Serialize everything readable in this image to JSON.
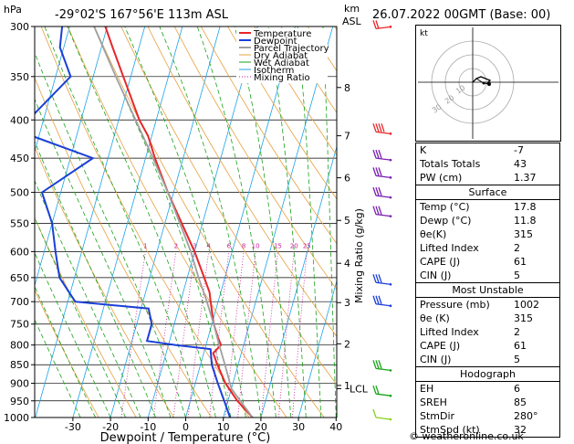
{
  "header": {
    "hpa_label": "hPa",
    "location": "-29°02'S  167°56'E  113m  ASL",
    "km_label": "km",
    "asl_label": "ASL",
    "date": "26.07.2022  00GMT  (Base: 00)"
  },
  "axes": {
    "xlabel": "Dewpoint / Temperature (°C)",
    "mixing_axis_label": "Mixing Ratio (g/kg)"
  },
  "chart_data": {
    "type": "skew-t",
    "pressure_levels": [
      300,
      350,
      400,
      450,
      500,
      550,
      600,
      650,
      700,
      750,
      800,
      850,
      900,
      950,
      1000
    ],
    "x_ticks": [
      -30,
      -20,
      -10,
      0,
      10,
      20,
      30,
      40
    ],
    "xlim": [
      -40,
      40
    ],
    "ylim": [
      1000,
      300
    ],
    "km_ticks": [
      {
        "label": "8",
        "p": 362
      },
      {
        "label": "7",
        "p": 420
      },
      {
        "label": "6",
        "p": 478
      },
      {
        "label": "5",
        "p": 545
      },
      {
        "label": "4",
        "p": 622
      },
      {
        "label": "3",
        "p": 702
      },
      {
        "label": "2",
        "p": 797
      },
      {
        "label": "1",
        "p": 906
      },
      {
        "label": "LCL",
        "p": 915
      }
    ],
    "mixing_ratio_labels": [
      "1",
      "2",
      "3",
      "4",
      "6",
      "8",
      "10",
      "15",
      "20",
      "25"
    ],
    "legend": [
      "Temperature",
      "Dewpoint",
      "Parcel Trajectory",
      "Dry Adiabat",
      "Wet Adiabat",
      "Isotherm",
      "Mixing Ratio"
    ],
    "series": [
      {
        "name": "Temperature",
        "color": "#e8262a",
        "points": [
          [
            1000,
            17.8
          ],
          [
            950,
            12.5
          ],
          [
            900,
            8.0
          ],
          [
            850,
            4.5
          ],
          [
            820,
            2.5
          ],
          [
            800,
            4.0
          ],
          [
            780,
            2.5
          ],
          [
            750,
            0.5
          ],
          [
            700,
            -2.0
          ],
          [
            680,
            -3.0
          ],
          [
            650,
            -5.5
          ],
          [
            600,
            -10.0
          ],
          [
            550,
            -15.5
          ],
          [
            500,
            -21.5
          ],
          [
            450,
            -27.5
          ],
          [
            420,
            -31.0
          ],
          [
            400,
            -34.5
          ],
          [
            350,
            -42.0
          ],
          [
            320,
            -47.0
          ],
          [
            300,
            -50.5
          ]
        ]
      },
      {
        "name": "Dewpoint",
        "color": "#1b3fd8",
        "points": [
          [
            1000,
            11.8
          ],
          [
            950,
            9.0
          ],
          [
            900,
            6.0
          ],
          [
            850,
            3.0
          ],
          [
            810,
            1.5
          ],
          [
            800,
            -8.0
          ],
          [
            790,
            -16.0
          ],
          [
            750,
            -16.0
          ],
          [
            715,
            -18.0
          ],
          [
            700,
            -38.0
          ],
          [
            650,
            -44.0
          ],
          [
            600,
            -47.0
          ],
          [
            550,
            -50.0
          ],
          [
            500,
            -55.0
          ],
          [
            450,
            -44.0
          ],
          [
            420,
            -62.0
          ],
          [
            400,
            -64.0
          ],
          [
            350,
            -56.0
          ],
          [
            320,
            -61.0
          ],
          [
            300,
            -62.0
          ]
        ]
      },
      {
        "name": "Parcel Trajectory",
        "color": "#a0a0a0",
        "points": [
          [
            1000,
            17.8
          ],
          [
            915,
            10.0
          ],
          [
            850,
            6.5
          ],
          [
            800,
            3.5
          ],
          [
            750,
            0.5
          ],
          [
            700,
            -3.0
          ],
          [
            650,
            -7.0
          ],
          [
            600,
            -11.0
          ],
          [
            550,
            -16.0
          ],
          [
            500,
            -21.5
          ],
          [
            450,
            -28.0
          ],
          [
            400,
            -35.5
          ],
          [
            350,
            -44.0
          ],
          [
            300,
            -53.5
          ]
        ]
      }
    ]
  },
  "hodograph": {
    "label": "kt",
    "ring_labels": [
      "10",
      "20",
      "30"
    ]
  },
  "indices": {
    "rows": [
      {
        "label": "K",
        "value": "-7"
      },
      {
        "label": "Totals Totals",
        "value": "43"
      },
      {
        "label": "PW (cm)",
        "value": "1.37"
      }
    ]
  },
  "surface": {
    "title": "Surface",
    "rows": [
      {
        "label": "Temp (°C)",
        "value": "17.8"
      },
      {
        "label": "Dewp (°C)",
        "value": "11.8"
      },
      {
        "label": "θe(K)",
        "value": "315"
      },
      {
        "label": "Lifted Index",
        "value": "2"
      },
      {
        "label": "CAPE (J)",
        "value": "61"
      },
      {
        "label": "CIN (J)",
        "value": "5"
      }
    ]
  },
  "most_unstable": {
    "title": "Most Unstable",
    "rows": [
      {
        "label": "Pressure (mb)",
        "value": "1002"
      },
      {
        "label": "θe (K)",
        "value": "315"
      },
      {
        "label": "Lifted Index",
        "value": "2"
      },
      {
        "label": "CAPE (J)",
        "value": "61"
      },
      {
        "label": "CIN (J)",
        "value": "5"
      }
    ]
  },
  "hodograph_stats": {
    "title": "Hodograph",
    "rows": [
      {
        "label": "EH",
        "value": "6"
      },
      {
        "label": "SREH",
        "value": "85"
      },
      {
        "label": "StmDir",
        "value": "280°"
      },
      {
        "label": "StmSpd (kt)",
        "value": "32"
      }
    ]
  },
  "footer": {
    "credit": "© weatheronline.co.uk"
  },
  "colors": {
    "temperature": "#e8262a",
    "dewpoint": "#1b3fd8",
    "parcel": "#a0a0a0",
    "dry_adiabat": "#e8a040",
    "wet_adiabat": "#1aa31a",
    "isotherm": "#1ba3e8",
    "mixing_ratio": "#c81e9a"
  }
}
